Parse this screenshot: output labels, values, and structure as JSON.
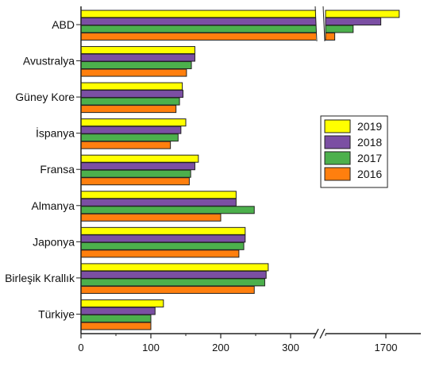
{
  "chart_data": {
    "type": "bar",
    "orientation": "horizontal",
    "axis_break": {
      "from": 380,
      "to": 1680
    },
    "categories": [
      "ABD",
      "Avustralya",
      "Güney Kore",
      "İspanya",
      "Fransa",
      "Almanya",
      "Japonya",
      "Birleşik Krallık",
      "Türkiye"
    ],
    "series": [
      {
        "name": "2019",
        "color": "#FFFF00",
        "values": [
          1720,
          163,
          145,
          150,
          168,
          222,
          235,
          268,
          118
        ]
      },
      {
        "name": "2018",
        "color": "#7B4FA3",
        "values": [
          1710,
          163,
          146,
          143,
          163,
          222,
          235,
          265,
          106
        ]
      },
      {
        "name": "2017",
        "color": "#4CB04C",
        "values": [
          1695,
          158,
          141,
          139,
          157,
          248,
          233,
          263,
          100
        ]
      },
      {
        "name": "2016",
        "color": "#FF7F0E",
        "values": [
          1685,
          151,
          136,
          128,
          155,
          200,
          226,
          248,
          100
        ]
      }
    ],
    "x_ticks": [
      "0",
      "100",
      "200",
      "300",
      "1700"
    ],
    "legend_position": "right",
    "grid": false
  }
}
